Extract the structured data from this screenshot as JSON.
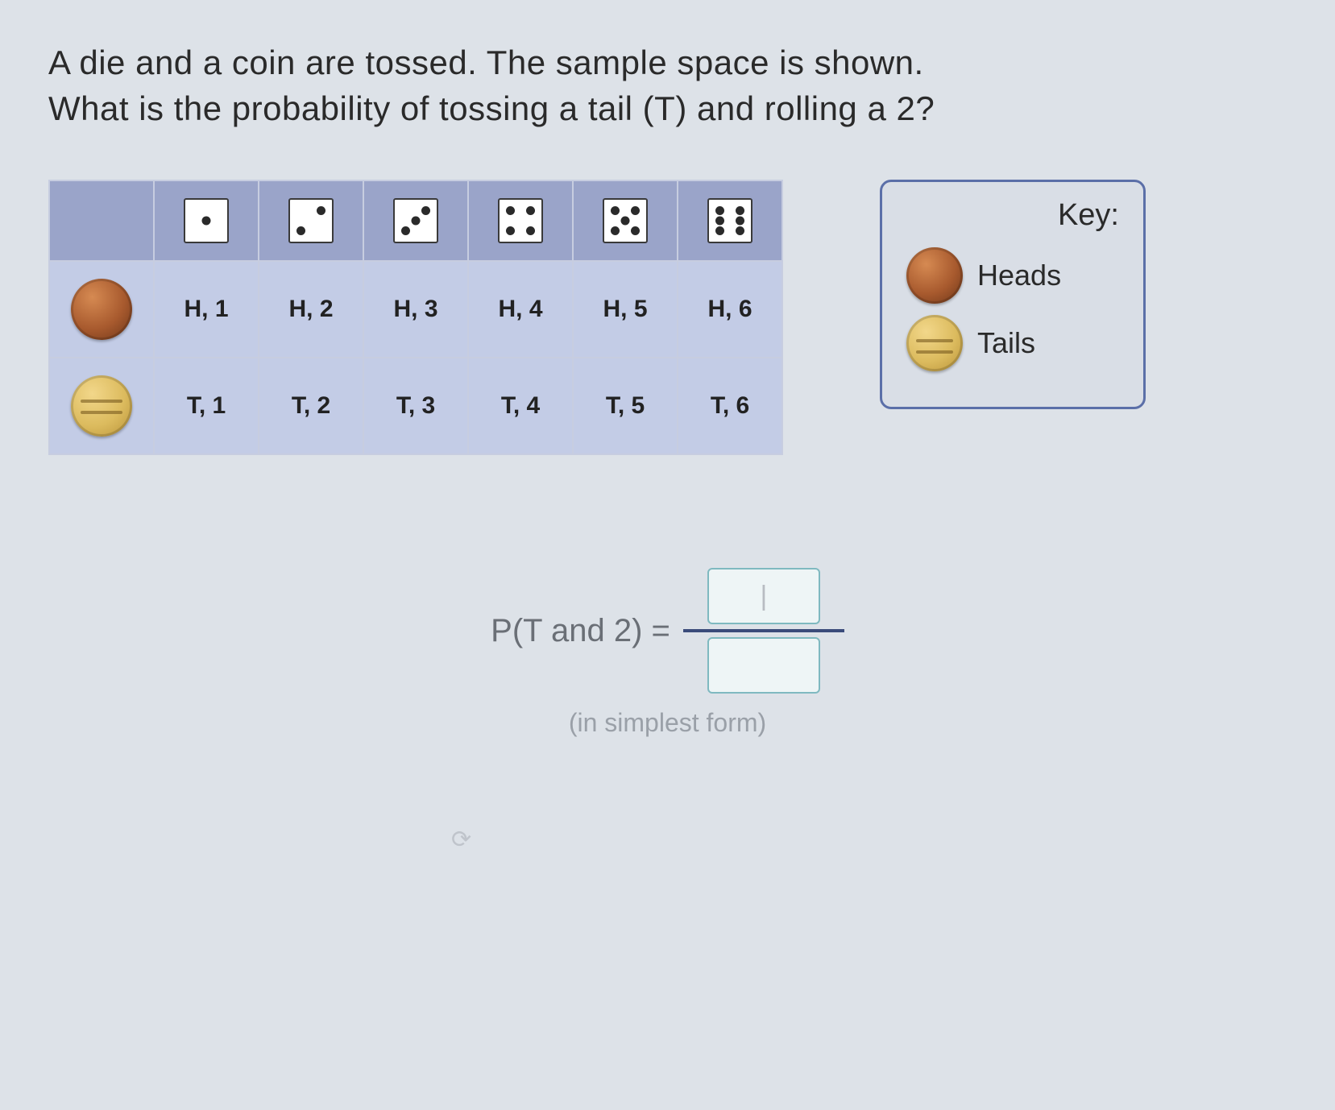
{
  "question": {
    "line1": "A die and a coin are tossed. The sample space is shown.",
    "line2": "What is the probability of tossing a tail (T) and rolling a 2?"
  },
  "table": {
    "die_faces": [
      1,
      2,
      3,
      4,
      5,
      6
    ],
    "coin_sides": [
      "heads",
      "tails"
    ],
    "rows": [
      [
        "H, 1",
        "H, 2",
        "H, 3",
        "H, 4",
        "H, 5",
        "H, 6"
      ],
      [
        "T, 1",
        "T, 2",
        "T, 3",
        "T, 4",
        "T, 5",
        "T, 6"
      ]
    ],
    "header_bg": "#9aa4c9",
    "cell_bg": "#c3cce6",
    "border_color": "#c7cde0",
    "text_color": "#222222",
    "cell_fontsize": 30
  },
  "key": {
    "title": "Key:",
    "heads_label": "Heads",
    "tails_label": "Tails",
    "border_color": "#5b6fa8"
  },
  "answer": {
    "lhs": "P(T and 2) =",
    "numerator_placeholder": "|",
    "denominator_placeholder": "",
    "hint": "(in simplest form)"
  },
  "colors": {
    "page_bg": "#dde2e8",
    "text": "#2a2a2a",
    "muted": "#6a6f76",
    "hint": "#9aa0a8",
    "input_border": "#7fb9c0",
    "frac_line": "#3a4b7a"
  },
  "coin_colors": {
    "heads": [
      "#d68a52",
      "#a85a2e",
      "#6b3518"
    ],
    "tails": [
      "#f2d78a",
      "#dcbb5e",
      "#b89238"
    ]
  }
}
